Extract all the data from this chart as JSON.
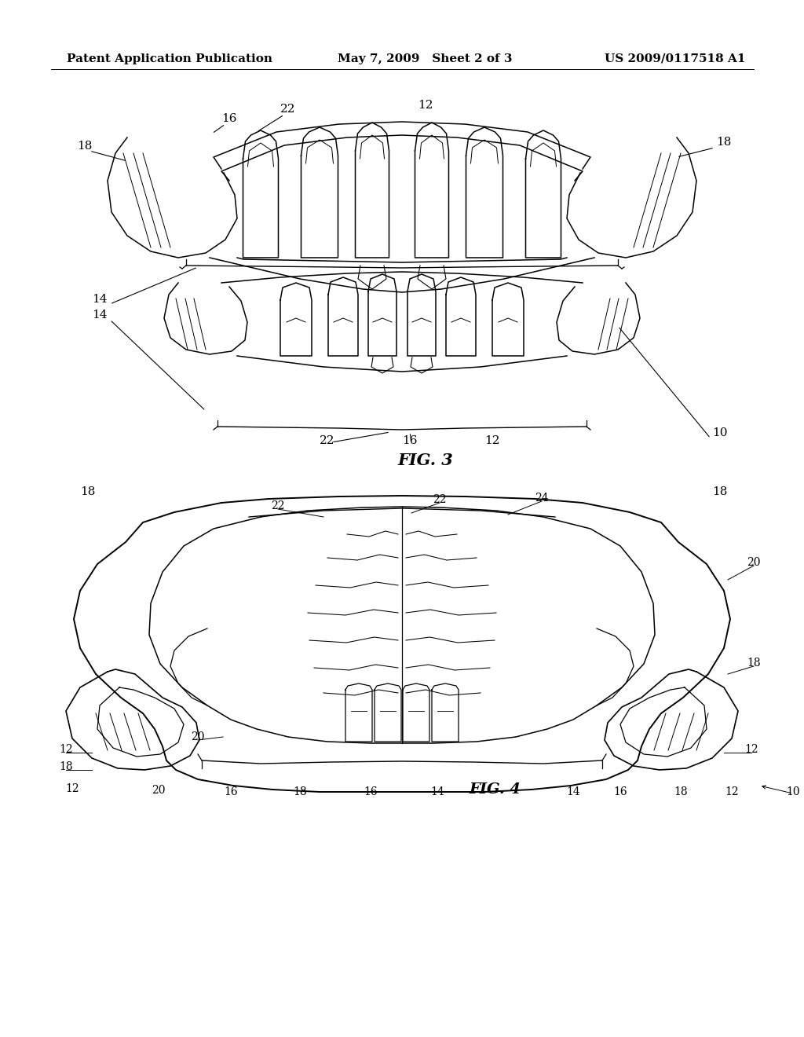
{
  "bg_color": "#ffffff",
  "header_left": "Patent Application Publication",
  "header_mid": "May 7, 2009   Sheet 2 of 3",
  "header_right": "US 2009/0117518 A1",
  "fig3_label": "FIG. 3",
  "fig4_label": "FIG. 4",
  "header_fontsize": 11,
  "fig_label_fontsize": 14,
  "lw": 1.1
}
